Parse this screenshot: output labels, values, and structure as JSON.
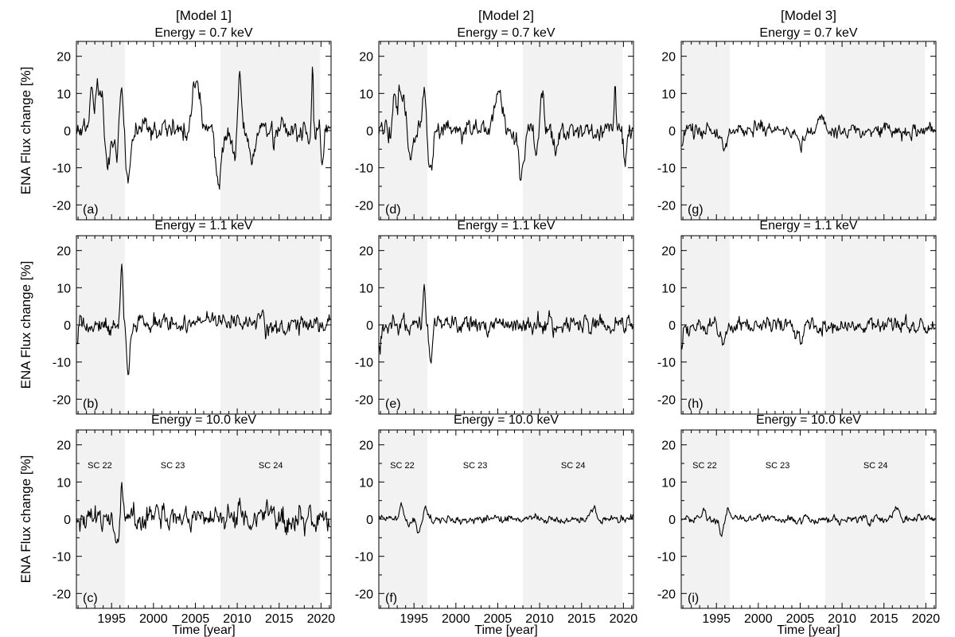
{
  "figure": {
    "ylabel": "ENA Flux change [%]",
    "xlabel": "Time [year]",
    "xlim": [
      1990.8,
      2021.2
    ],
    "ylim": [
      -24,
      24
    ],
    "xticks": [
      1995,
      2000,
      2005,
      2010,
      2015,
      2020
    ],
    "yticks": [
      -20,
      -10,
      0,
      10,
      20
    ],
    "shaded_periods": [
      [
        1990.8,
        1996.6
      ],
      [
        2008.0,
        2019.9
      ]
    ],
    "shade_color": "#f2f2f2",
    "line_color": "#000000",
    "models": [
      "[Model 1]",
      "[Model 2]",
      "[Model 3]"
    ],
    "energies": [
      "Energy = 0.7 keV",
      "Energy = 1.1 keV",
      "Energy = 10.0 keV"
    ],
    "cycle_labels": [
      {
        "text": "SC 22",
        "x": 1993.6
      },
      {
        "text": "SC 23",
        "x": 2002.3
      },
      {
        "text": "SC 24",
        "x": 2014.0
      }
    ]
  },
  "chart_data": [
    {
      "type": "line",
      "panel_label": "(a)",
      "model": "[Model 1]",
      "energy": "Energy = 0.7 keV",
      "amp": 2.2,
      "seed": 11,
      "events": [
        [
          1992.6,
          11,
          0.3
        ],
        [
          1993.3,
          12,
          0.3
        ],
        [
          1993.8,
          9,
          0.3
        ],
        [
          1994.6,
          -9,
          0.4
        ],
        [
          1995.6,
          -6,
          0.3
        ],
        [
          1996.2,
          11,
          0.3
        ],
        [
          1997.0,
          -12,
          0.4
        ],
        [
          2004.9,
          12,
          0.5
        ],
        [
          2005.5,
          6,
          0.4
        ],
        [
          2007.8,
          -13,
          0.5
        ],
        [
          2009.6,
          -6,
          0.4
        ],
        [
          2010.3,
          13,
          0.3
        ],
        [
          2011.8,
          -9,
          0.4
        ],
        [
          2019.0,
          17,
          0.12
        ],
        [
          2020.2,
          -9,
          0.25
        ]
      ]
    },
    {
      "type": "line",
      "panel_label": "(b)",
      "model": "[Model 1]",
      "energy": "Energy = 1.1 keV",
      "amp": 2.0,
      "seed": 12,
      "events": [
        [
          1996.2,
          17,
          0.18
        ],
        [
          1997.0,
          -13,
          0.25
        ],
        [
          1990.9,
          -5,
          0.2
        ]
      ]
    },
    {
      "type": "line",
      "panel_label": "(c)",
      "model": "[Model 1]",
      "energy": "Energy = 10.0 keV",
      "amp": 2.6,
      "seed": 13,
      "events": [
        [
          1993.5,
          5,
          0.3
        ],
        [
          1995.6,
          -8,
          0.35
        ],
        [
          1996.2,
          8,
          0.3
        ]
      ]
    },
    {
      "type": "line",
      "panel_label": "(d)",
      "model": "[Model 2]",
      "energy": "Energy = 0.7 keV",
      "amp": 2.1,
      "seed": 21,
      "events": [
        [
          1992.6,
          10,
          0.3
        ],
        [
          1993.3,
          11,
          0.3
        ],
        [
          1993.8,
          8,
          0.3
        ],
        [
          1994.6,
          -8,
          0.4
        ],
        [
          1996.2,
          10,
          0.3
        ],
        [
          1997.0,
          -11,
          0.4
        ],
        [
          2004.9,
          10,
          0.5
        ],
        [
          2005.5,
          5,
          0.4
        ],
        [
          2007.8,
          -11,
          0.5
        ],
        [
          2009.6,
          -6,
          0.4
        ],
        [
          2010.3,
          11,
          0.3
        ],
        [
          2011.8,
          -7,
          0.4
        ],
        [
          2019.0,
          14,
          0.12
        ],
        [
          2020.2,
          -7,
          0.25
        ]
      ]
    },
    {
      "type": "line",
      "panel_label": "(e)",
      "model": "[Model 2]",
      "energy": "Energy = 1.1 keV",
      "amp": 1.9,
      "seed": 22,
      "events": [
        [
          1996.2,
          13,
          0.18
        ],
        [
          1997.0,
          -11,
          0.25
        ],
        [
          1990.9,
          -5,
          0.2
        ]
      ]
    },
    {
      "type": "line",
      "panel_label": "(f)",
      "model": "[Model 2]",
      "energy": "Energy = 10.0 keV",
      "amp": 0.9,
      "seed": 23,
      "events": [
        [
          1993.5,
          4,
          0.3
        ],
        [
          1995.6,
          -4,
          0.35
        ],
        [
          1996.4,
          3,
          0.3
        ],
        [
          2016.5,
          3,
          0.5
        ]
      ]
    },
    {
      "type": "line",
      "panel_label": "(g)",
      "model": "[Model 3]",
      "energy": "Energy = 0.7 keV",
      "amp": 1.5,
      "seed": 31,
      "events": [
        [
          1995.9,
          -6,
          0.35
        ],
        [
          1990.9,
          -4,
          0.2
        ],
        [
          2005.0,
          -4,
          0.5
        ],
        [
          2007.5,
          4,
          0.5
        ]
      ]
    },
    {
      "type": "line",
      "panel_label": "(h)",
      "model": "[Model 3]",
      "energy": "Energy = 1.1 keV",
      "amp": 1.6,
      "seed": 32,
      "events": [
        [
          1995.9,
          -6,
          0.35
        ],
        [
          1990.9,
          -5,
          0.2
        ],
        [
          2005.0,
          -4,
          0.5
        ]
      ]
    },
    {
      "type": "line",
      "panel_label": "(i)",
      "model": "[Model 3]",
      "energy": "Energy = 10.0 keV",
      "amp": 0.8,
      "seed": 33,
      "events": [
        [
          1993.5,
          3.5,
          0.3
        ],
        [
          1995.6,
          -4,
          0.35
        ],
        [
          1996.4,
          3,
          0.3
        ],
        [
          2016.5,
          3,
          0.5
        ]
      ]
    }
  ]
}
